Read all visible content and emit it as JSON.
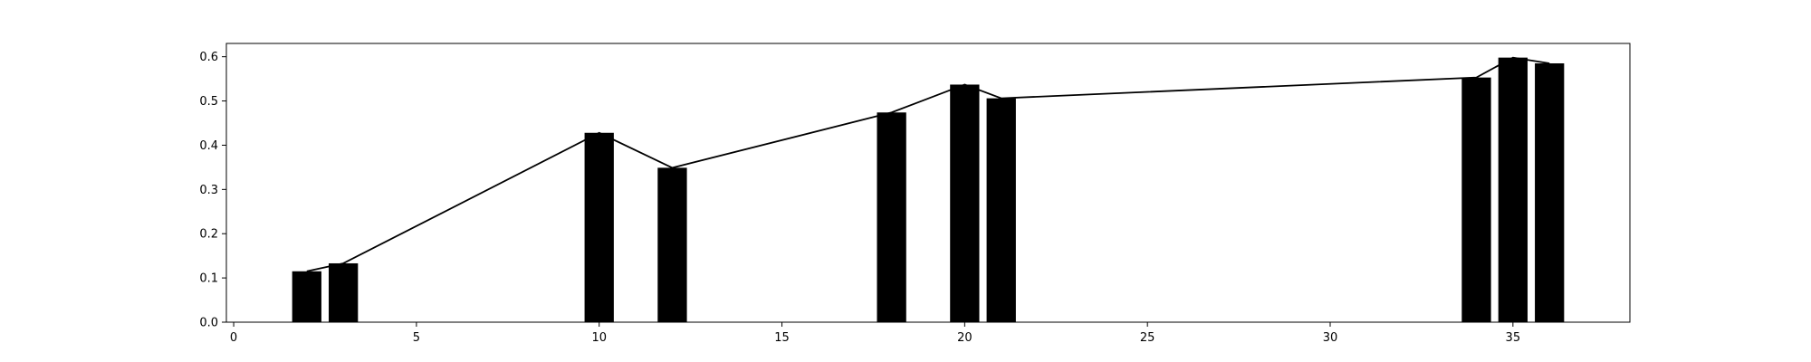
{
  "chart_data": {
    "type": "bar",
    "x": [
      2,
      3,
      10,
      12,
      18,
      20,
      21,
      34,
      35,
      36
    ],
    "values": [
      0.115,
      0.133,
      0.428,
      0.349,
      0.474,
      0.537,
      0.506,
      0.553,
      0.598,
      0.585
    ],
    "line": {
      "x": [
        2,
        3,
        10,
        12,
        18,
        20,
        21,
        34,
        35,
        36
      ],
      "values": [
        0.115,
        0.133,
        0.428,
        0.349,
        0.474,
        0.537,
        0.506,
        0.553,
        0.598,
        0.585
      ]
    },
    "title": "",
    "xlabel": "",
    "ylabel": "",
    "xlim": [
      -0.2,
      38.2
    ],
    "ylim": [
      0,
      0.63
    ],
    "xticks": [
      0,
      5,
      10,
      15,
      20,
      25,
      30,
      35
    ],
    "xtick_labels": [
      "0",
      "5",
      "10",
      "15",
      "20",
      "25",
      "30",
      "35"
    ],
    "yticks": [
      0.0,
      0.1,
      0.2,
      0.3,
      0.4,
      0.5,
      0.6
    ],
    "ytick_labels": [
      "0.0",
      "0.1",
      "0.2",
      "0.3",
      "0.4",
      "0.5",
      "0.6"
    ],
    "bar_width": 0.8,
    "grid": false,
    "legend": "none",
    "colors": {
      "bars": "#000000",
      "line": "#000000",
      "axes": "#000000",
      "background": "#ffffff"
    }
  }
}
